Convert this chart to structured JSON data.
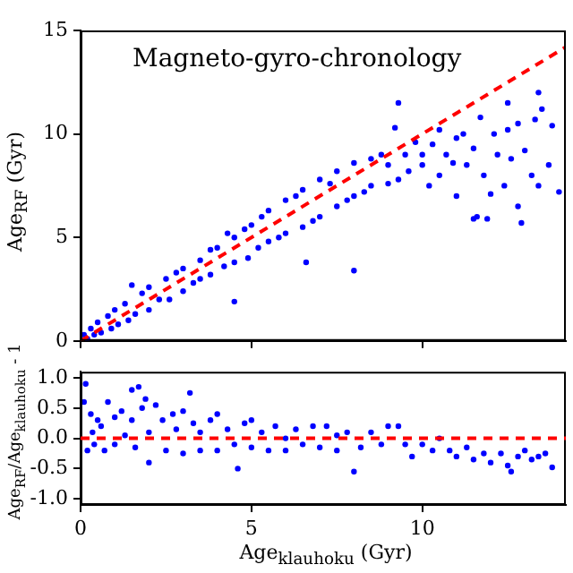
{
  "chart_data": [
    {
      "type": "scatter",
      "title": "Magneto-gyro-chronology",
      "ylabel": "Age$_{RF}$ (Gyr)",
      "xlim": [
        0,
        14.2
      ],
      "xticks": [
        0,
        5,
        10
      ],
      "ylim": [
        0,
        15
      ],
      "yticks": [
        0,
        5,
        10,
        15
      ],
      "tick_labels": "y",
      "grid": false,
      "legend": false,
      "series": [
        {
          "color": "#0000ff",
          "marker": "circle",
          "x": [
            0.1,
            0.2,
            0.3,
            0.4,
            0.5,
            0.6,
            0.8,
            0.9,
            1.0,
            1.1,
            1.3,
            1.4,
            1.5,
            1.6,
            1.8,
            2.0,
            2.0,
            2.3,
            2.5,
            2.6,
            2.8,
            3.0,
            3.0,
            3.3,
            3.5,
            3.5,
            3.8,
            3.8,
            4.0,
            4.2,
            4.3,
            4.5,
            4.5,
            4.5,
            4.8,
            4.9,
            5.0,
            5.2,
            5.3,
            5.5,
            5.5,
            5.8,
            6.0,
            6.0,
            6.3,
            6.5,
            6.5,
            6.6,
            6.8,
            7.0,
            7.0,
            7.3,
            7.5,
            7.5,
            7.8,
            8.0,
            8.0,
            8.0,
            8.3,
            8.5,
            8.5,
            8.8,
            9.0,
            9.0,
            9.2,
            9.3,
            9.3,
            9.5,
            9.6,
            9.8,
            10.0,
            10.0,
            10.2,
            10.3,
            10.5,
            10.5,
            10.7,
            10.9,
            11.0,
            11.0,
            11.2,
            11.3,
            11.5,
            11.5,
            11.6,
            11.7,
            11.8,
            11.9,
            12.0,
            12.1,
            12.2,
            12.4,
            12.5,
            12.5,
            12.6,
            12.8,
            12.8,
            12.9,
            13.0,
            13.2,
            13.3,
            13.4,
            13.4,
            13.5,
            13.7,
            13.8,
            14.0
          ],
          "values": [
            0.3,
            0.1,
            0.6,
            0.3,
            0.9,
            0.4,
            1.2,
            0.6,
            1.5,
            0.8,
            1.8,
            1.0,
            2.7,
            1.3,
            2.3,
            1.5,
            2.6,
            2.0,
            3.0,
            2.0,
            3.3,
            2.4,
            3.5,
            2.8,
            3.9,
            3.0,
            4.4,
            3.2,
            4.5,
            3.6,
            5.2,
            3.8,
            5.0,
            1.9,
            5.4,
            4.0,
            5.6,
            4.5,
            6.0,
            4.8,
            6.3,
            5.0,
            6.8,
            5.2,
            7.0,
            5.5,
            7.3,
            3.8,
            5.8,
            7.8,
            6.0,
            7.6,
            6.5,
            8.2,
            6.8,
            8.6,
            7.0,
            3.4,
            7.2,
            8.8,
            7.5,
            9.0,
            7.6,
            8.5,
            10.3,
            7.8,
            11.5,
            9.0,
            8.2,
            9.6,
            8.5,
            9.0,
            7.5,
            9.5,
            8.0,
            10.2,
            9.0,
            8.6,
            9.8,
            7.0,
            10.0,
            8.5,
            9.3,
            5.9,
            6.0,
            10.8,
            8.0,
            5.9,
            7.1,
            10.0,
            9.0,
            7.5,
            10.2,
            11.5,
            8.8,
            10.5,
            6.5,
            5.7,
            9.2,
            8.0,
            10.7,
            7.5,
            12.0,
            11.2,
            8.5,
            10.4,
            7.2
          ]
        },
        {
          "type": "line",
          "color": "#ff0000",
          "marker": "none",
          "line_style": "dashed",
          "x": [
            0,
            14.2
          ],
          "values": [
            0,
            14.2
          ]
        }
      ]
    },
    {
      "type": "scatter",
      "xlabel": "Age$_{klauhoku}$ (Gyr)",
      "ylabel": "Age$_{RF}$/Age$_{klauhoku}$ - 1",
      "xlim": [
        0,
        14.2
      ],
      "xticks": [
        0,
        5,
        10
      ],
      "ylim": [
        -1.1,
        1.1
      ],
      "yticks": [
        {
          "value": -1,
          "label": "-1.0"
        },
        {
          "value": -0.5,
          "label": "-0.5"
        },
        {
          "value": 0,
          "label": "0.0"
        },
        {
          "value": 0.5,
          "label": "0.5"
        },
        {
          "value": 1,
          "label": "1.0"
        }
      ],
      "marker": "circle",
      "grid": false,
      "legend": false,
      "ref_lines": [
        {
          "axis": "y",
          "value": 0,
          "color": "#ff0000",
          "line_style": "dashed"
        }
      ],
      "series": [
        {
          "color": "#0000ff",
          "x": [
            0.1,
            0.15,
            0.2,
            0.3,
            0.35,
            0.4,
            0.5,
            0.6,
            0.7,
            0.8,
            1.0,
            1.0,
            1.2,
            1.3,
            1.5,
            1.5,
            1.6,
            1.7,
            1.8,
            1.9,
            2.0,
            2.0,
            2.2,
            2.4,
            2.5,
            2.7,
            2.8,
            3.0,
            3.0,
            3.2,
            3.3,
            3.5,
            3.5,
            3.8,
            4.0,
            4.0,
            4.3,
            4.5,
            4.6,
            4.8,
            5.0,
            5.0,
            5.3,
            5.5,
            5.7,
            6.0,
            6.0,
            6.3,
            6.5,
            6.8,
            7.0,
            7.2,
            7.5,
            7.5,
            7.8,
            8.0,
            8.2,
            8.5,
            8.8,
            9.0,
            9.3,
            9.5,
            9.7,
            10.0,
            10.3,
            10.5,
            10.8,
            11.0,
            11.3,
            11.5,
            11.8,
            12.0,
            12.3,
            12.5,
            12.6,
            12.8,
            13.0,
            13.2,
            13.4,
            13.6,
            13.8
          ],
          "values": [
            0.6,
            0.9,
            -0.2,
            0.4,
            0.1,
            -0.1,
            0.3,
            0.2,
            -0.2,
            0.6,
            0.35,
            -0.1,
            0.45,
            0.05,
            0.8,
            0.3,
            -0.15,
            0.85,
            0.5,
            0.65,
            0.1,
            -0.4,
            0.55,
            0.3,
            -0.2,
            0.4,
            0.15,
            0.45,
            -0.25,
            0.75,
            0.25,
            0.1,
            -0.2,
            0.3,
            0.4,
            -0.2,
            0.15,
            -0.1,
            -0.5,
            0.25,
            0.3,
            -0.15,
            0.1,
            -0.2,
            0.2,
            0.0,
            -0.2,
            0.15,
            -0.1,
            0.2,
            -0.15,
            0.2,
            0.05,
            -0.2,
            0.1,
            -0.55,
            -0.15,
            0.1,
            -0.1,
            0.2,
            0.2,
            -0.1,
            -0.3,
            -0.1,
            -0.2,
            0.0,
            -0.2,
            -0.3,
            -0.15,
            -0.35,
            -0.25,
            -0.4,
            -0.25,
            -0.45,
            -0.55,
            -0.3,
            -0.2,
            -0.35,
            -0.3,
            -0.25,
            -0.48
          ]
        }
      ]
    }
  ]
}
